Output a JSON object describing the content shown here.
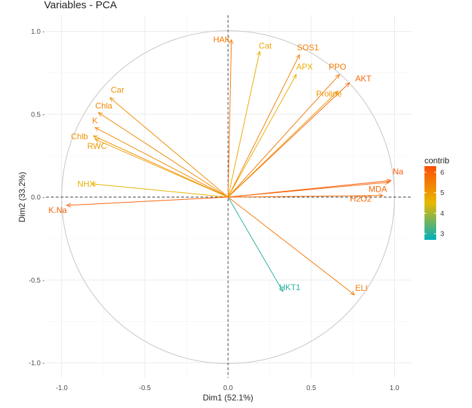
{
  "chart_data": {
    "type": "scatter",
    "title": "Variables - PCA",
    "xlabel": "Dim1 (52.1%)",
    "ylabel": "Dim2 (33.2%)",
    "xlim": [
      -1.1,
      1.05
    ],
    "ylim": [
      -1.08,
      1.05
    ],
    "x_ticks": [
      -1.0,
      -0.5,
      0.0,
      0.5,
      1.0
    ],
    "x_tick_labels": [
      "-1.0",
      "-0.5",
      "0.0",
      "0.5",
      "1.0"
    ],
    "y_ticks": [
      -1.0,
      -0.5,
      0.0,
      0.5,
      1.0
    ],
    "y_tick_labels": [
      "-1.0 -",
      "-0.5 -",
      "0.0 -",
      "0.5 -",
      "1.0 -"
    ],
    "grid": true,
    "unit_circle": true,
    "legend": {
      "title": "contrib",
      "position": "right",
      "ticks": [
        3,
        4,
        5,
        6
      ],
      "range": [
        2.7,
        6.3
      ],
      "colors": [
        "#00AFBB",
        "#E7B800",
        "#FC4E07"
      ]
    },
    "variables": [
      {
        "name": "HAK",
        "x": 0.02,
        "y": 0.95,
        "contrib": 5.6
      },
      {
        "name": "Cat",
        "x": 0.19,
        "y": 0.88,
        "contrib": 4.8
      },
      {
        "name": "SOS1",
        "x": 0.43,
        "y": 0.86,
        "contrib": 5.5
      },
      {
        "name": "APX",
        "x": 0.41,
        "y": 0.74,
        "contrib": 4.7
      },
      {
        "name": "PPO",
        "x": 0.67,
        "y": 0.74,
        "contrib": 5.6
      },
      {
        "name": "AKT",
        "x": 0.73,
        "y": 0.69,
        "contrib": 5.9
      },
      {
        "name": "Proline",
        "x": 0.66,
        "y": 0.64,
        "contrib": 5.1
      },
      {
        "name": "Car",
        "x": -0.71,
        "y": 0.6,
        "contrib": 5.2
      },
      {
        "name": "Chla",
        "x": -0.78,
        "y": 0.51,
        "contrib": 5.3
      },
      {
        "name": "K",
        "x": -0.8,
        "y": 0.42,
        "contrib": 5.3
      },
      {
        "name": "Chlb",
        "x": -0.81,
        "y": 0.37,
        "contrib": 5.1
      },
      {
        "name": "RWC",
        "x": -0.8,
        "y": 0.35,
        "contrib": 5.0
      },
      {
        "name": "NHX",
        "x": -0.82,
        "y": 0.08,
        "contrib": 4.6
      },
      {
        "name": "K.Na",
        "x": -0.97,
        "y": -0.05,
        "contrib": 6.0
      },
      {
        "name": "Na",
        "x": 0.98,
        "y": 0.1,
        "contrib": 6.1
      },
      {
        "name": "MDA",
        "x": 0.97,
        "y": 0.09,
        "contrib": 5.9
      },
      {
        "name": "H2O2",
        "x": 0.93,
        "y": 0.01,
        "contrib": 5.8
      },
      {
        "name": "HKT1",
        "x": 0.33,
        "y": -0.57,
        "contrib": 3.0
      },
      {
        "name": "ELI",
        "x": 0.76,
        "y": -0.59,
        "contrib": 5.6
      }
    ]
  }
}
